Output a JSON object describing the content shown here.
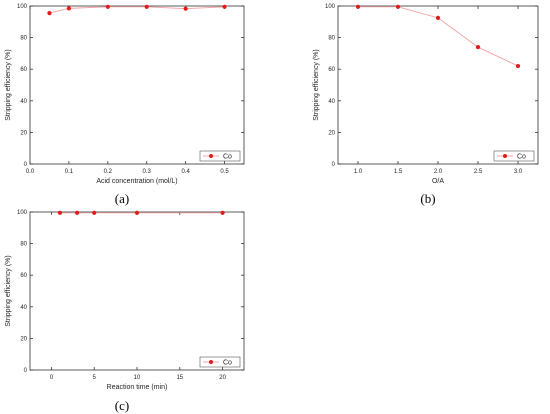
{
  "chart_data": [
    {
      "type": "line",
      "panel_label": "(a)",
      "xlabel": "Acid concentration (mol/L)",
      "ylabel": "Stripping efficiency (%)",
      "xlim": [
        0.0,
        0.55
      ],
      "ylim": [
        0,
        100
      ],
      "xticks": [
        "0.0",
        "0.1",
        "0.2",
        "0.3",
        "0.4",
        "0.5"
      ],
      "xtick_values": [
        0.0,
        0.1,
        0.2,
        0.3,
        0.4,
        0.5
      ],
      "yticks": [
        "0",
        "20",
        "40",
        "60",
        "80",
        "100"
      ],
      "ytick_values": [
        0,
        20,
        40,
        60,
        80,
        100
      ],
      "series": [
        {
          "name": "Co",
          "x": [
            0.05,
            0.1,
            0.2,
            0.3,
            0.4,
            0.5
          ],
          "y": [
            95.5,
            98.5,
            99.5,
            99.5,
            98.3,
            99.5
          ]
        }
      ],
      "legend": "bottom-right",
      "marker_color": "#e31a1c",
      "line_color": "#f4a0a0",
      "grid": false
    },
    {
      "type": "line",
      "panel_label": "(b)",
      "xlabel": "O/A",
      "ylabel": "Stripping efficiency (%)",
      "xlim": [
        0.75,
        3.25
      ],
      "ylim": [
        0,
        100
      ],
      "xticks": [
        "1.0",
        "1.5",
        "2.0",
        "2.5",
        "3.0"
      ],
      "xtick_values": [
        1.0,
        1.5,
        2.0,
        2.5,
        3.0
      ],
      "yticks": [
        "0",
        "20",
        "40",
        "60",
        "80",
        "100"
      ],
      "ytick_values": [
        0,
        20,
        40,
        60,
        80,
        100
      ],
      "series": [
        {
          "name": "Co",
          "x": [
            1.0,
            1.5,
            2.0,
            2.5,
            3.0
          ],
          "y": [
            99.5,
            99.5,
            92.5,
            74,
            62
          ]
        }
      ],
      "legend": "bottom-right",
      "marker_color": "#e31a1c",
      "line_color": "#f4a0a0",
      "grid": false
    },
    {
      "type": "line",
      "panel_label": "(c)",
      "xlabel": "Reaction time (min)",
      "ylabel": "Stripping efficiency (%)",
      "xlim": [
        -2.5,
        22.5
      ],
      "ylim": [
        0,
        100
      ],
      "xticks": [
        "0",
        "5",
        "10",
        "15",
        "20"
      ],
      "xtick_values": [
        0,
        5,
        10,
        15,
        20
      ],
      "yticks": [
        "0",
        "20",
        "40",
        "60",
        "80",
        "100"
      ],
      "ytick_values": [
        0,
        20,
        40,
        60,
        80,
        100
      ],
      "series": [
        {
          "name": "Co",
          "x": [
            1,
            3,
            5,
            10,
            20
          ],
          "y": [
            99.5,
            99.5,
            99.5,
            99.5,
            99.5
          ]
        }
      ],
      "legend": "bottom-right",
      "marker_color": "#e31a1c",
      "line_color": "#f4a0a0",
      "grid": false
    }
  ]
}
